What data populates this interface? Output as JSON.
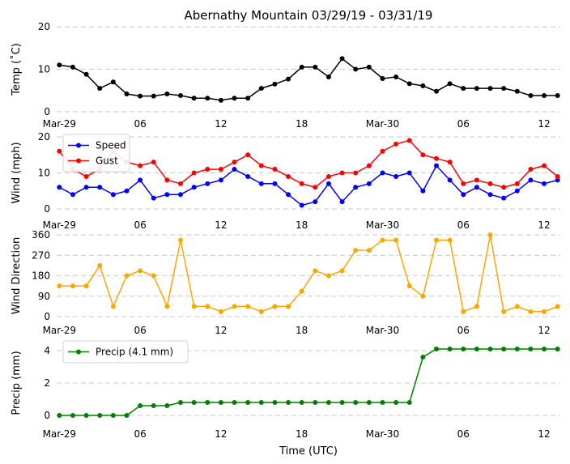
{
  "chart_data": {
    "type": "line",
    "title": "Abernathy Mountain 03/29/19 - 03/31/19",
    "xlabel": "Time (UTC)",
    "x_hours": [
      0,
      1,
      2,
      3,
      4,
      5,
      6,
      7,
      8,
      9,
      10,
      11,
      12,
      13,
      14,
      15,
      16,
      17,
      18,
      19,
      20,
      21,
      22,
      23,
      24,
      25,
      26,
      27,
      28,
      29,
      30,
      31,
      32,
      33,
      34,
      35,
      36,
      37
    ],
    "x_ticks": [
      {
        "hour": 0,
        "label": "Mar-29"
      },
      {
        "hour": 6,
        "label": "06"
      },
      {
        "hour": 12,
        "label": "12"
      },
      {
        "hour": 18,
        "label": "18"
      },
      {
        "hour": 24,
        "label": "Mar-30"
      },
      {
        "hour": 30,
        "label": "06"
      },
      {
        "hour": 36,
        "label": "12"
      }
    ],
    "xlim": [
      -0.2,
      37.2
    ],
    "panels": [
      {
        "name": "temp",
        "ylabel": "Temp (˚C)",
        "ylim": [
          0,
          20
        ],
        "yticks": [
          0,
          10,
          20
        ],
        "legend": false,
        "series": [
          {
            "name": "Temp",
            "color": "#000000",
            "values": [
              11,
              10.5,
              8.8,
              5.5,
              7,
              4.2,
              3.7,
              3.7,
              4.2,
              3.8,
              3.2,
              3.2,
              2.7,
              3.2,
              3.2,
              5.5,
              6.5,
              7.7,
              10.5,
              10.5,
              8.2,
              12.5,
              10,
              10.5,
              7.8,
              8.2,
              6.6,
              6.1,
              4.8,
              6.6,
              5.5,
              5.5,
              5.5,
              5.5,
              4.8,
              3.8,
              3.8,
              3.8
            ]
          }
        ]
      },
      {
        "name": "wind",
        "ylabel": "Wind (mph)",
        "ylim": [
          0,
          20
        ],
        "yticks": [
          0,
          10,
          20
        ],
        "legend": true,
        "series": [
          {
            "name": "Speed",
            "color": "#0000ff",
            "values": [
              6,
              4,
              6,
              6,
              4,
              5,
              8,
              3,
              4,
              4,
              6,
              7,
              8,
              11,
              9,
              7,
              7,
              4,
              1,
              2,
              7,
              2,
              6,
              7,
              10,
              9,
              10,
              5,
              12,
              8,
              4,
              6,
              4,
              3,
              5,
              8,
              7,
              8
            ]
          },
          {
            "name": "Gust",
            "color": "#ff0000",
            "values": [
              16,
              11,
              9,
              11,
              16,
              13,
              12,
              13,
              8,
              7,
              10,
              11,
              11,
              13,
              15,
              12,
              11,
              9,
              7,
              6,
              9,
              10,
              10,
              12,
              16,
              18,
              19,
              15,
              14,
              13,
              7,
              8,
              7,
              6,
              7,
              11,
              12,
              9
            ]
          }
        ]
      },
      {
        "name": "direction",
        "ylabel": "Wind Direction",
        "ylim": [
          0,
          360
        ],
        "yticks": [
          0,
          90,
          180,
          270,
          360
        ],
        "legend": false,
        "series": [
          {
            "name": "Direction",
            "color": "#ffa500",
            "values": [
              135,
              135,
              135,
              225,
              45,
              180,
              202,
              180,
              45,
              337,
              45,
              45,
              22,
              45,
              45,
              22,
              45,
              45,
              112,
              202,
              180,
              202,
              292,
              292,
              337,
              337,
              135,
              90,
              337,
              337,
              22,
              45,
              360,
              22,
              45,
              22,
              22,
              45
            ]
          }
        ]
      },
      {
        "name": "precip",
        "ylabel": "Precip (mm)",
        "ylim": [
          0,
          4
        ],
        "yticks": [
          0,
          2,
          4
        ],
        "legend": true,
        "series": [
          {
            "name": "Precip (4.1 mm)",
            "color": "#008000",
            "values": [
              0,
              0,
              0,
              0,
              0,
              0,
              0.6,
              0.6,
              0.6,
              0.8,
              0.8,
              0.8,
              0.8,
              0.8,
              0.8,
              0.8,
              0.8,
              0.8,
              0.8,
              0.8,
              0.8,
              0.8,
              0.8,
              0.8,
              0.8,
              0.8,
              0.8,
              3.6,
              4.1,
              4.1,
              4.1,
              4.1,
              4.1,
              4.1,
              4.1,
              4.1,
              4.1,
              4.1
            ]
          }
        ]
      }
    ]
  }
}
